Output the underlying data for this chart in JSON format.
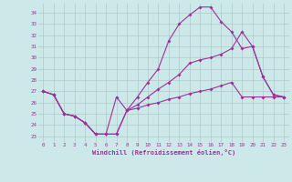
{
  "xlabel": "Windchill (Refroidissement éolien,°C)",
  "bg_color": "#cce8e8",
  "grid_color": "#b0c8c8",
  "line_color": "#993399",
  "x_ticks": [
    0,
    1,
    2,
    3,
    4,
    5,
    6,
    7,
    8,
    9,
    10,
    11,
    12,
    13,
    14,
    15,
    16,
    17,
    18,
    19,
    20,
    21,
    22,
    23
  ],
  "ylim": [
    22.5,
    34.8
  ],
  "yticks": [
    23,
    24,
    25,
    26,
    27,
    28,
    29,
    30,
    31,
    32,
    33,
    34
  ],
  "line1": {
    "x": [
      0,
      1,
      2,
      3,
      4,
      5,
      6,
      7,
      8,
      9,
      10,
      11,
      12,
      13,
      14,
      15,
      16,
      17,
      18,
      19,
      20,
      21,
      22,
      23
    ],
    "y": [
      27.0,
      26.7,
      25.0,
      24.8,
      24.2,
      23.2,
      23.2,
      26.5,
      25.3,
      26.5,
      27.8,
      29.0,
      31.5,
      33.0,
      33.8,
      34.5,
      34.5,
      33.2,
      32.3,
      30.8,
      31.0,
      28.3,
      26.7,
      26.5
    ]
  },
  "line2": {
    "x": [
      0,
      1,
      2,
      3,
      4,
      5,
      6,
      7,
      8,
      9,
      10,
      11,
      12,
      13,
      14,
      15,
      16,
      17,
      18,
      19,
      20,
      21,
      22,
      23
    ],
    "y": [
      27.0,
      26.7,
      25.0,
      24.8,
      24.2,
      23.2,
      23.2,
      23.2,
      25.3,
      25.8,
      26.5,
      27.2,
      27.8,
      28.5,
      29.5,
      29.8,
      30.0,
      30.3,
      30.8,
      32.3,
      31.0,
      28.3,
      26.7,
      26.5
    ]
  },
  "line3": {
    "x": [
      0,
      1,
      2,
      3,
      4,
      5,
      6,
      7,
      8,
      9,
      10,
      11,
      12,
      13,
      14,
      15,
      16,
      17,
      18,
      19,
      20,
      21,
      22,
      23
    ],
    "y": [
      27.0,
      26.7,
      25.0,
      24.8,
      24.2,
      23.2,
      23.2,
      23.2,
      25.3,
      25.5,
      25.8,
      26.0,
      26.3,
      26.5,
      26.8,
      27.0,
      27.2,
      27.5,
      27.8,
      26.5,
      26.5,
      26.5,
      26.5,
      26.5
    ]
  }
}
